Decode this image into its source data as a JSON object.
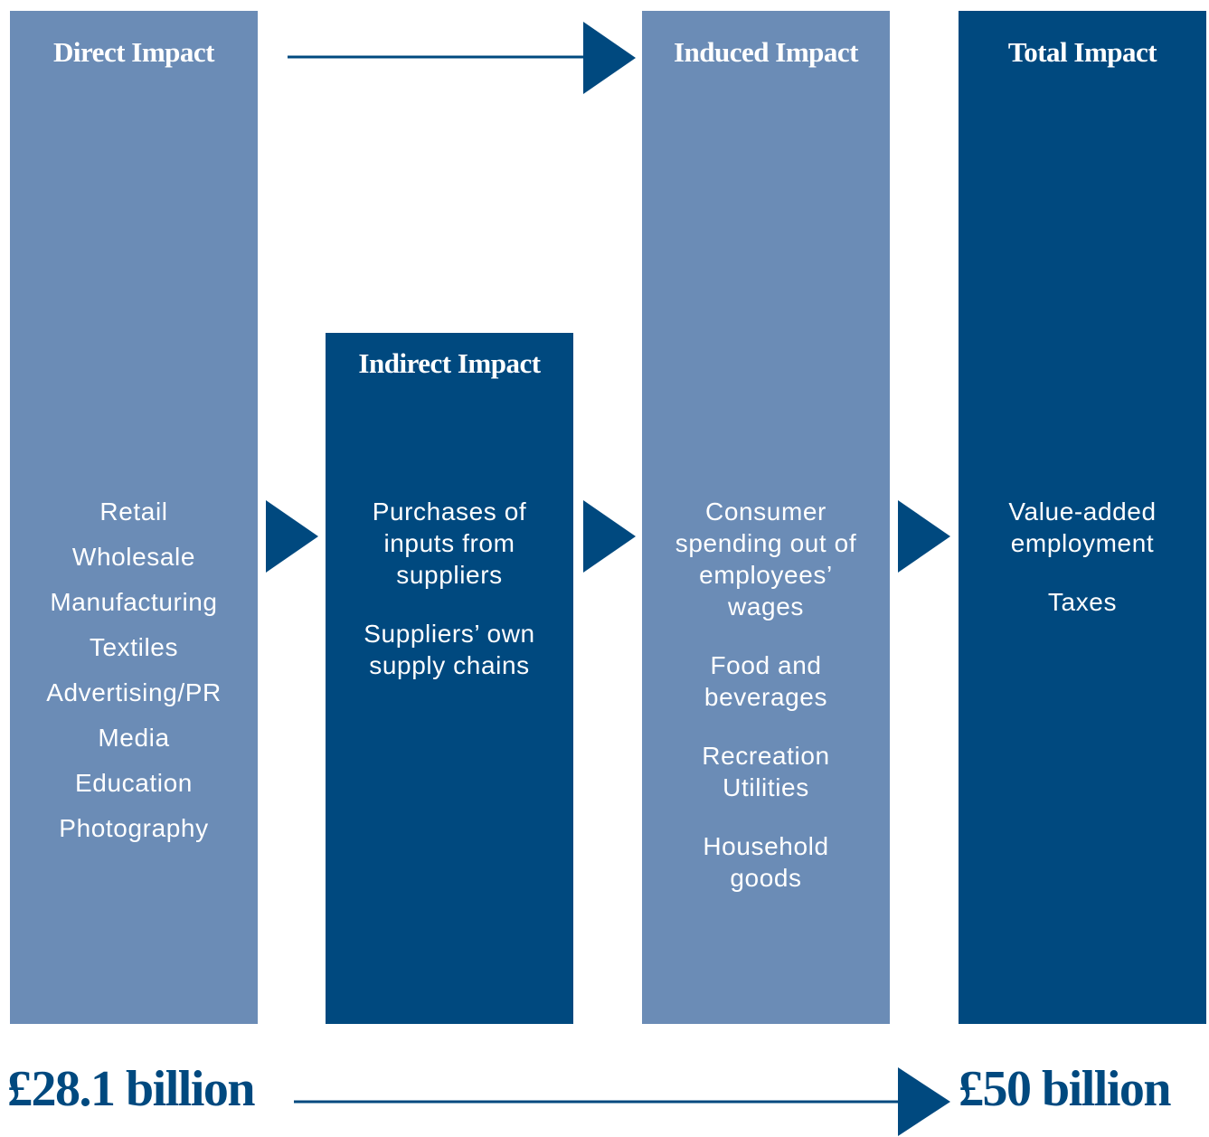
{
  "columns": [
    {
      "title": "Direct Impact",
      "groups": [
        [
          "Retail",
          "Wholesale",
          "Manufacturing",
          "Textiles",
          "Advertising/PR",
          "Media",
          "Education",
          "Photography"
        ]
      ]
    },
    {
      "title": "Indirect Impact",
      "groups": [
        [
          "Purchases of inputs from suppliers"
        ],
        [
          "Suppliers’ own supply chains"
        ]
      ]
    },
    {
      "title": "Induced Impact",
      "groups": [
        [
          "Consumer spending out of employees’ wages"
        ],
        [
          "Food and beverages"
        ],
        [
          "Recreation",
          "Utilities"
        ],
        [
          "Household goods"
        ]
      ]
    },
    {
      "title": "Total Impact",
      "groups": [
        [
          "Value-added employment"
        ],
        [
          "Taxes"
        ]
      ]
    }
  ],
  "totals": {
    "start": "£28.1 billion",
    "end": "£50 billion"
  }
}
